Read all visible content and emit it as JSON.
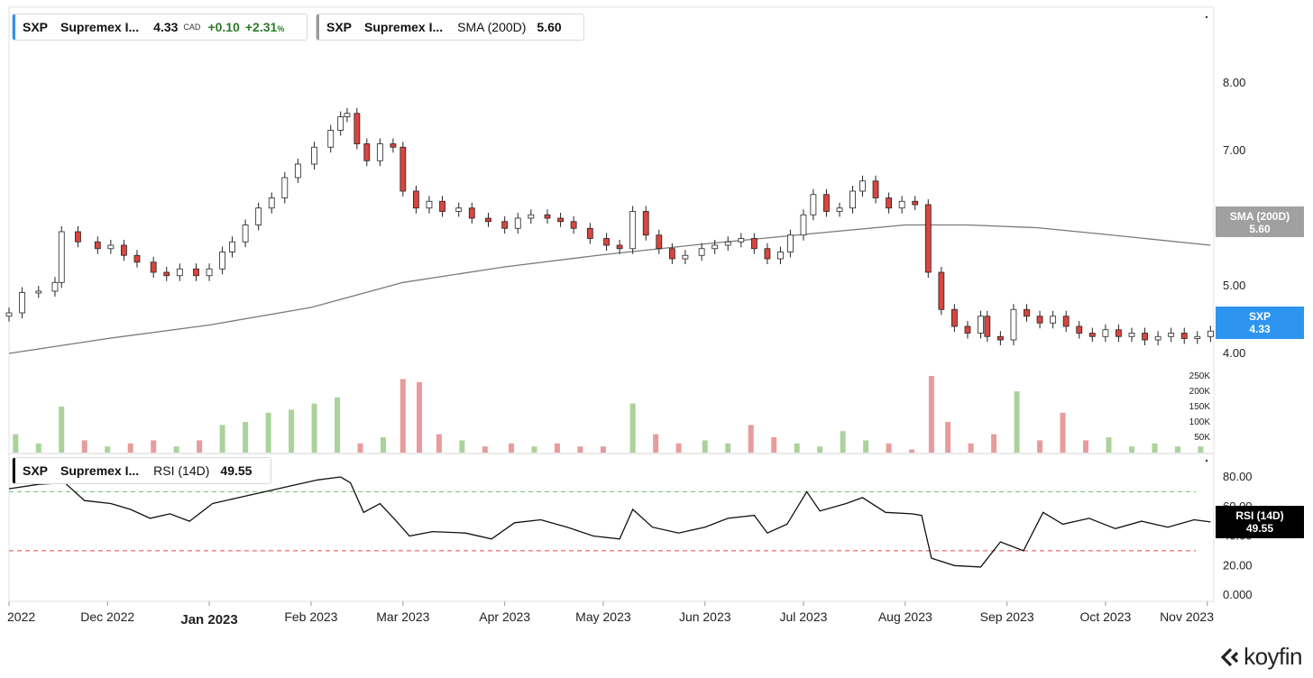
{
  "legend_price": {
    "symbol": "SXP",
    "name": "Supremex I...",
    "price": "4.33",
    "currency": "CAD",
    "change": "+0.10",
    "pct": "+2.31",
    "pct_sign": "%"
  },
  "legend_sma": {
    "symbol": "SXP",
    "name": "Supremex I...",
    "indicator": "SMA (200D)",
    "value": "5.60"
  },
  "legend_rsi": {
    "symbol": "SXP",
    "name": "Supremex I...",
    "indicator": "RSI (14D)",
    "value": "49.55"
  },
  "tags": {
    "sma_label": "SMA (200D)",
    "sma_value": "5.60",
    "price_label": "SXP",
    "price_value": "4.33",
    "rsi_label": "RSI (14D)",
    "rsi_value": "49.55"
  },
  "logo_text": "koyfin",
  "colors": {
    "up": "#ffffff",
    "down": "#d9453f",
    "vol_up": "#a9d39b",
    "vol_down": "#e99b9b",
    "sma": "#7a7a7a",
    "price_tag": "#2d95f0",
    "sma_tag": "#a0a0a0",
    "rsi_tag": "#000000",
    "overbought": "#6fbf6f",
    "oversold": "#e04a4a"
  },
  "chart_data": {
    "type": "candlestick",
    "x_start": "2022-11-01",
    "x_end": "2023-11-03",
    "x_ticks": [
      {
        "label": "2022",
        "date": "2022-11-01",
        "bold": false
      },
      {
        "label": "Dec 2022",
        "date": "2022-12-01",
        "bold": false
      },
      {
        "label": "Jan 2023",
        "date": "2023-01-01",
        "bold": true
      },
      {
        "label": "Feb 2023",
        "date": "2023-02-01",
        "bold": false
      },
      {
        "label": "Mar 2023",
        "date": "2023-03-01",
        "bold": false
      },
      {
        "label": "Apr 2023",
        "date": "2023-04-01",
        "bold": false
      },
      {
        "label": "May 2023",
        "date": "2023-05-01",
        "bold": false
      },
      {
        "label": "Jun 2023",
        "date": "2023-06-01",
        "bold": false
      },
      {
        "label": "Jul 2023",
        "date": "2023-07-01",
        "bold": false
      },
      {
        "label": "Aug 2023",
        "date": "2023-08-01",
        "bold": false
      },
      {
        "label": "Sep 2023",
        "date": "2023-09-01",
        "bold": false
      },
      {
        "label": "Oct 2023",
        "date": "2023-10-01",
        "bold": false
      },
      {
        "label": "Nov 2023",
        "date": "2023-11-01",
        "bold": false
      }
    ],
    "price_ticks": [
      4.0,
      5.0,
      6.0,
      7.0,
      8.0
    ],
    "price_tick_labels": [
      "4.00",
      "5.00",
      "6.00",
      "7.00",
      "8.00"
    ],
    "volume_ticks": [
      50000,
      100000,
      150000,
      200000,
      250000
    ],
    "volume_tick_labels": [
      "50K",
      "100K",
      "150K",
      "200K",
      "250K"
    ],
    "rsi_ticks": [
      0,
      20,
      40,
      60,
      80
    ],
    "rsi_tick_labels": [
      "0.000",
      "20.00",
      "40.00",
      "60.00",
      "80.00"
    ],
    "rsi_overbought": 70,
    "rsi_oversold": 30,
    "series": [
      {
        "name": "SXP",
        "points": [
          [
            "2022-11-01",
            4.6
          ],
          [
            "2022-11-05",
            4.9
          ],
          [
            "2022-11-10",
            4.92
          ],
          [
            "2022-11-15",
            5.05
          ],
          [
            "2022-11-17",
            5.8
          ],
          [
            "2022-11-22",
            5.65
          ],
          [
            "2022-11-28",
            5.55
          ],
          [
            "2022-12-02",
            5.6
          ],
          [
            "2022-12-06",
            5.45
          ],
          [
            "2022-12-10",
            5.35
          ],
          [
            "2022-12-15",
            5.2
          ],
          [
            "2022-12-19",
            5.15
          ],
          [
            "2022-12-23",
            5.25
          ],
          [
            "2022-12-28",
            5.15
          ],
          [
            "2023-01-01",
            5.25
          ],
          [
            "2023-01-05",
            5.5
          ],
          [
            "2023-01-08",
            5.65
          ],
          [
            "2023-01-12",
            5.9
          ],
          [
            "2023-01-16",
            6.15
          ],
          [
            "2023-01-20",
            6.3
          ],
          [
            "2023-01-24",
            6.6
          ],
          [
            "2023-01-28",
            6.8
          ],
          [
            "2023-02-02",
            7.05
          ],
          [
            "2023-02-07",
            7.3
          ],
          [
            "2023-02-10",
            7.5
          ],
          [
            "2023-02-12",
            7.55
          ],
          [
            "2023-02-15",
            7.1
          ],
          [
            "2023-02-18",
            6.85
          ],
          [
            "2023-02-22",
            7.1
          ],
          [
            "2023-02-26",
            7.05
          ],
          [
            "2023-03-01",
            6.4
          ],
          [
            "2023-03-05",
            6.15
          ],
          [
            "2023-03-09",
            6.25
          ],
          [
            "2023-03-13",
            6.1
          ],
          [
            "2023-03-18",
            6.15
          ],
          [
            "2023-03-22",
            6.0
          ],
          [
            "2023-03-27",
            5.95
          ],
          [
            "2023-04-01",
            5.85
          ],
          [
            "2023-04-05",
            6.0
          ],
          [
            "2023-04-09",
            6.05
          ],
          [
            "2023-04-14",
            6.0
          ],
          [
            "2023-04-18",
            5.95
          ],
          [
            "2023-04-22",
            5.85
          ],
          [
            "2023-04-27",
            5.7
          ],
          [
            "2023-05-02",
            5.6
          ],
          [
            "2023-05-06",
            5.55
          ],
          [
            "2023-05-10",
            6.1
          ],
          [
            "2023-05-14",
            5.75
          ],
          [
            "2023-05-18",
            5.55
          ],
          [
            "2023-05-22",
            5.4
          ],
          [
            "2023-05-26",
            5.45
          ],
          [
            "2023-05-31",
            5.55
          ],
          [
            "2023-06-04",
            5.6
          ],
          [
            "2023-06-08",
            5.65
          ],
          [
            "2023-06-12",
            5.7
          ],
          [
            "2023-06-16",
            5.55
          ],
          [
            "2023-06-20",
            5.4
          ],
          [
            "2023-06-24",
            5.5
          ],
          [
            "2023-06-27",
            5.75
          ],
          [
            "2023-07-01",
            6.05
          ],
          [
            "2023-07-04",
            6.35
          ],
          [
            "2023-07-08",
            6.1
          ],
          [
            "2023-07-12",
            6.15
          ],
          [
            "2023-07-16",
            6.4
          ],
          [
            "2023-07-19",
            6.55
          ],
          [
            "2023-07-23",
            6.3
          ],
          [
            "2023-07-27",
            6.15
          ],
          [
            "2023-07-31",
            6.25
          ],
          [
            "2023-08-04",
            6.2
          ],
          [
            "2023-08-08",
            5.2
          ],
          [
            "2023-08-12",
            4.65
          ],
          [
            "2023-08-16",
            4.4
          ],
          [
            "2023-08-20",
            4.3
          ],
          [
            "2023-08-24",
            4.55
          ],
          [
            "2023-08-26",
            4.25
          ],
          [
            "2023-08-30",
            4.2
          ],
          [
            "2023-09-03",
            4.65
          ],
          [
            "2023-09-07",
            4.55
          ],
          [
            "2023-09-11",
            4.45
          ],
          [
            "2023-09-15",
            4.55
          ],
          [
            "2023-09-19",
            4.4
          ],
          [
            "2023-09-23",
            4.3
          ],
          [
            "2023-09-27",
            4.25
          ],
          [
            "2023-10-01",
            4.35
          ],
          [
            "2023-10-05",
            4.25
          ],
          [
            "2023-10-09",
            4.3
          ],
          [
            "2023-10-13",
            4.2
          ],
          [
            "2023-10-17",
            4.25
          ],
          [
            "2023-10-21",
            4.3
          ],
          [
            "2023-10-25",
            4.22
          ],
          [
            "2023-10-29",
            4.25
          ],
          [
            "2023-11-02",
            4.33
          ]
        ]
      },
      {
        "name": "SMA (200D)",
        "points": [
          [
            "2022-11-01",
            4.0
          ],
          [
            "2022-12-01",
            4.22
          ],
          [
            "2023-01-01",
            4.42
          ],
          [
            "2023-02-01",
            4.68
          ],
          [
            "2023-03-01",
            5.05
          ],
          [
            "2023-04-01",
            5.28
          ],
          [
            "2023-05-01",
            5.46
          ],
          [
            "2023-06-01",
            5.62
          ],
          [
            "2023-07-01",
            5.76
          ],
          [
            "2023-08-01",
            5.9
          ],
          [
            "2023-08-20",
            5.9
          ],
          [
            "2023-09-10",
            5.86
          ],
          [
            "2023-10-01",
            5.76
          ],
          [
            "2023-11-02",
            5.6
          ]
        ]
      },
      {
        "name": "RSI (14D)",
        "points": [
          [
            "2022-11-01",
            72
          ],
          [
            "2022-11-10",
            75
          ],
          [
            "2022-11-18",
            76
          ],
          [
            "2022-11-24",
            64
          ],
          [
            "2022-12-02",
            62
          ],
          [
            "2022-12-08",
            58
          ],
          [
            "2022-12-14",
            52
          ],
          [
            "2022-12-20",
            55
          ],
          [
            "2022-12-26",
            50
          ],
          [
            "2023-01-02",
            62
          ],
          [
            "2023-01-10",
            66
          ],
          [
            "2023-01-18",
            70
          ],
          [
            "2023-01-26",
            74
          ],
          [
            "2023-02-03",
            78
          ],
          [
            "2023-02-10",
            80
          ],
          [
            "2023-02-13",
            76
          ],
          [
            "2023-02-17",
            56
          ],
          [
            "2023-02-22",
            62
          ],
          [
            "2023-02-27",
            50
          ],
          [
            "2023-03-03",
            40
          ],
          [
            "2023-03-10",
            43
          ],
          [
            "2023-03-20",
            42
          ],
          [
            "2023-03-28",
            38
          ],
          [
            "2023-04-04",
            49
          ],
          [
            "2023-04-12",
            51
          ],
          [
            "2023-04-20",
            46
          ],
          [
            "2023-04-28",
            40
          ],
          [
            "2023-05-06",
            38
          ],
          [
            "2023-05-10",
            58
          ],
          [
            "2023-05-16",
            46
          ],
          [
            "2023-05-24",
            42
          ],
          [
            "2023-06-01",
            46
          ],
          [
            "2023-06-08",
            52
          ],
          [
            "2023-06-16",
            54
          ],
          [
            "2023-06-20",
            42
          ],
          [
            "2023-06-26",
            48
          ],
          [
            "2023-07-02",
            70
          ],
          [
            "2023-07-06",
            57
          ],
          [
            "2023-07-14",
            62
          ],
          [
            "2023-07-19",
            66
          ],
          [
            "2023-07-26",
            56
          ],
          [
            "2023-08-03",
            55
          ],
          [
            "2023-08-06",
            54
          ],
          [
            "2023-08-09",
            25
          ],
          [
            "2023-08-16",
            20
          ],
          [
            "2023-08-24",
            19
          ],
          [
            "2023-08-30",
            36
          ],
          [
            "2023-09-06",
            30
          ],
          [
            "2023-09-12",
            56
          ],
          [
            "2023-09-18",
            48
          ],
          [
            "2023-09-26",
            52
          ],
          [
            "2023-10-04",
            45
          ],
          [
            "2023-10-12",
            50
          ],
          [
            "2023-10-20",
            46
          ],
          [
            "2023-10-28",
            51
          ],
          [
            "2023-11-02",
            49.55
          ]
        ]
      },
      {
        "name": "Volume",
        "points": [
          [
            "2022-11-03",
            60000
          ],
          [
            "2022-11-10",
            30000
          ],
          [
            "2022-11-17",
            150000
          ],
          [
            "2022-11-24",
            40000
          ],
          [
            "2022-12-01",
            20000
          ],
          [
            "2022-12-08",
            30000
          ],
          [
            "2022-12-15",
            40000
          ],
          [
            "2022-12-22",
            20000
          ],
          [
            "2022-12-29",
            40000
          ],
          [
            "2023-01-05",
            90000
          ],
          [
            "2023-01-12",
            100000
          ],
          [
            "2023-01-19",
            130000
          ],
          [
            "2023-01-26",
            140000
          ],
          [
            "2023-02-02",
            160000
          ],
          [
            "2023-02-09",
            180000
          ],
          [
            "2023-02-16",
            30000
          ],
          [
            "2023-02-23",
            50000
          ],
          [
            "2023-03-01",
            240000
          ],
          [
            "2023-03-06",
            230000
          ],
          [
            "2023-03-12",
            60000
          ],
          [
            "2023-03-19",
            40000
          ],
          [
            "2023-03-26",
            20000
          ],
          [
            "2023-04-03",
            30000
          ],
          [
            "2023-04-10",
            20000
          ],
          [
            "2023-04-17",
            30000
          ],
          [
            "2023-04-24",
            20000
          ],
          [
            "2023-05-01",
            20000
          ],
          [
            "2023-05-10",
            160000
          ],
          [
            "2023-05-17",
            60000
          ],
          [
            "2023-05-24",
            30000
          ],
          [
            "2023-06-01",
            40000
          ],
          [
            "2023-06-08",
            30000
          ],
          [
            "2023-06-15",
            90000
          ],
          [
            "2023-06-22",
            50000
          ],
          [
            "2023-06-29",
            30000
          ],
          [
            "2023-07-06",
            20000
          ],
          [
            "2023-07-13",
            70000
          ],
          [
            "2023-07-20",
            40000
          ],
          [
            "2023-07-27",
            30000
          ],
          [
            "2023-08-03",
            10000
          ],
          [
            "2023-08-09",
            250000
          ],
          [
            "2023-08-14",
            100000
          ],
          [
            "2023-08-21",
            30000
          ],
          [
            "2023-08-28",
            60000
          ],
          [
            "2023-09-04",
            200000
          ],
          [
            "2023-09-11",
            40000
          ],
          [
            "2023-09-18",
            130000
          ],
          [
            "2023-09-25",
            40000
          ],
          [
            "2023-10-02",
            50000
          ],
          [
            "2023-10-09",
            20000
          ],
          [
            "2023-10-16",
            30000
          ],
          [
            "2023-10-23",
            20000
          ],
          [
            "2023-10-30",
            20000
          ]
        ]
      }
    ]
  }
}
